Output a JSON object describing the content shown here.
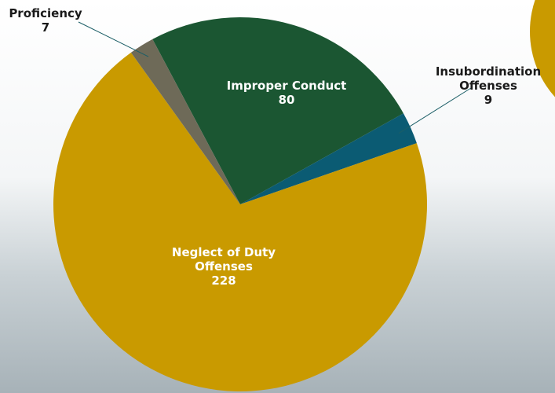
{
  "chart_data": {
    "type": "pie",
    "categories": [
      "Improper Conduct",
      "Insubordination Offenses",
      "Neglect of Duty Offenses",
      "Proficiency"
    ],
    "values": [
      80,
      9,
      228,
      7
    ],
    "colors": [
      "#1b5632",
      "#0b5b73",
      "#c99a00",
      "#6e6a58"
    ]
  }
}
